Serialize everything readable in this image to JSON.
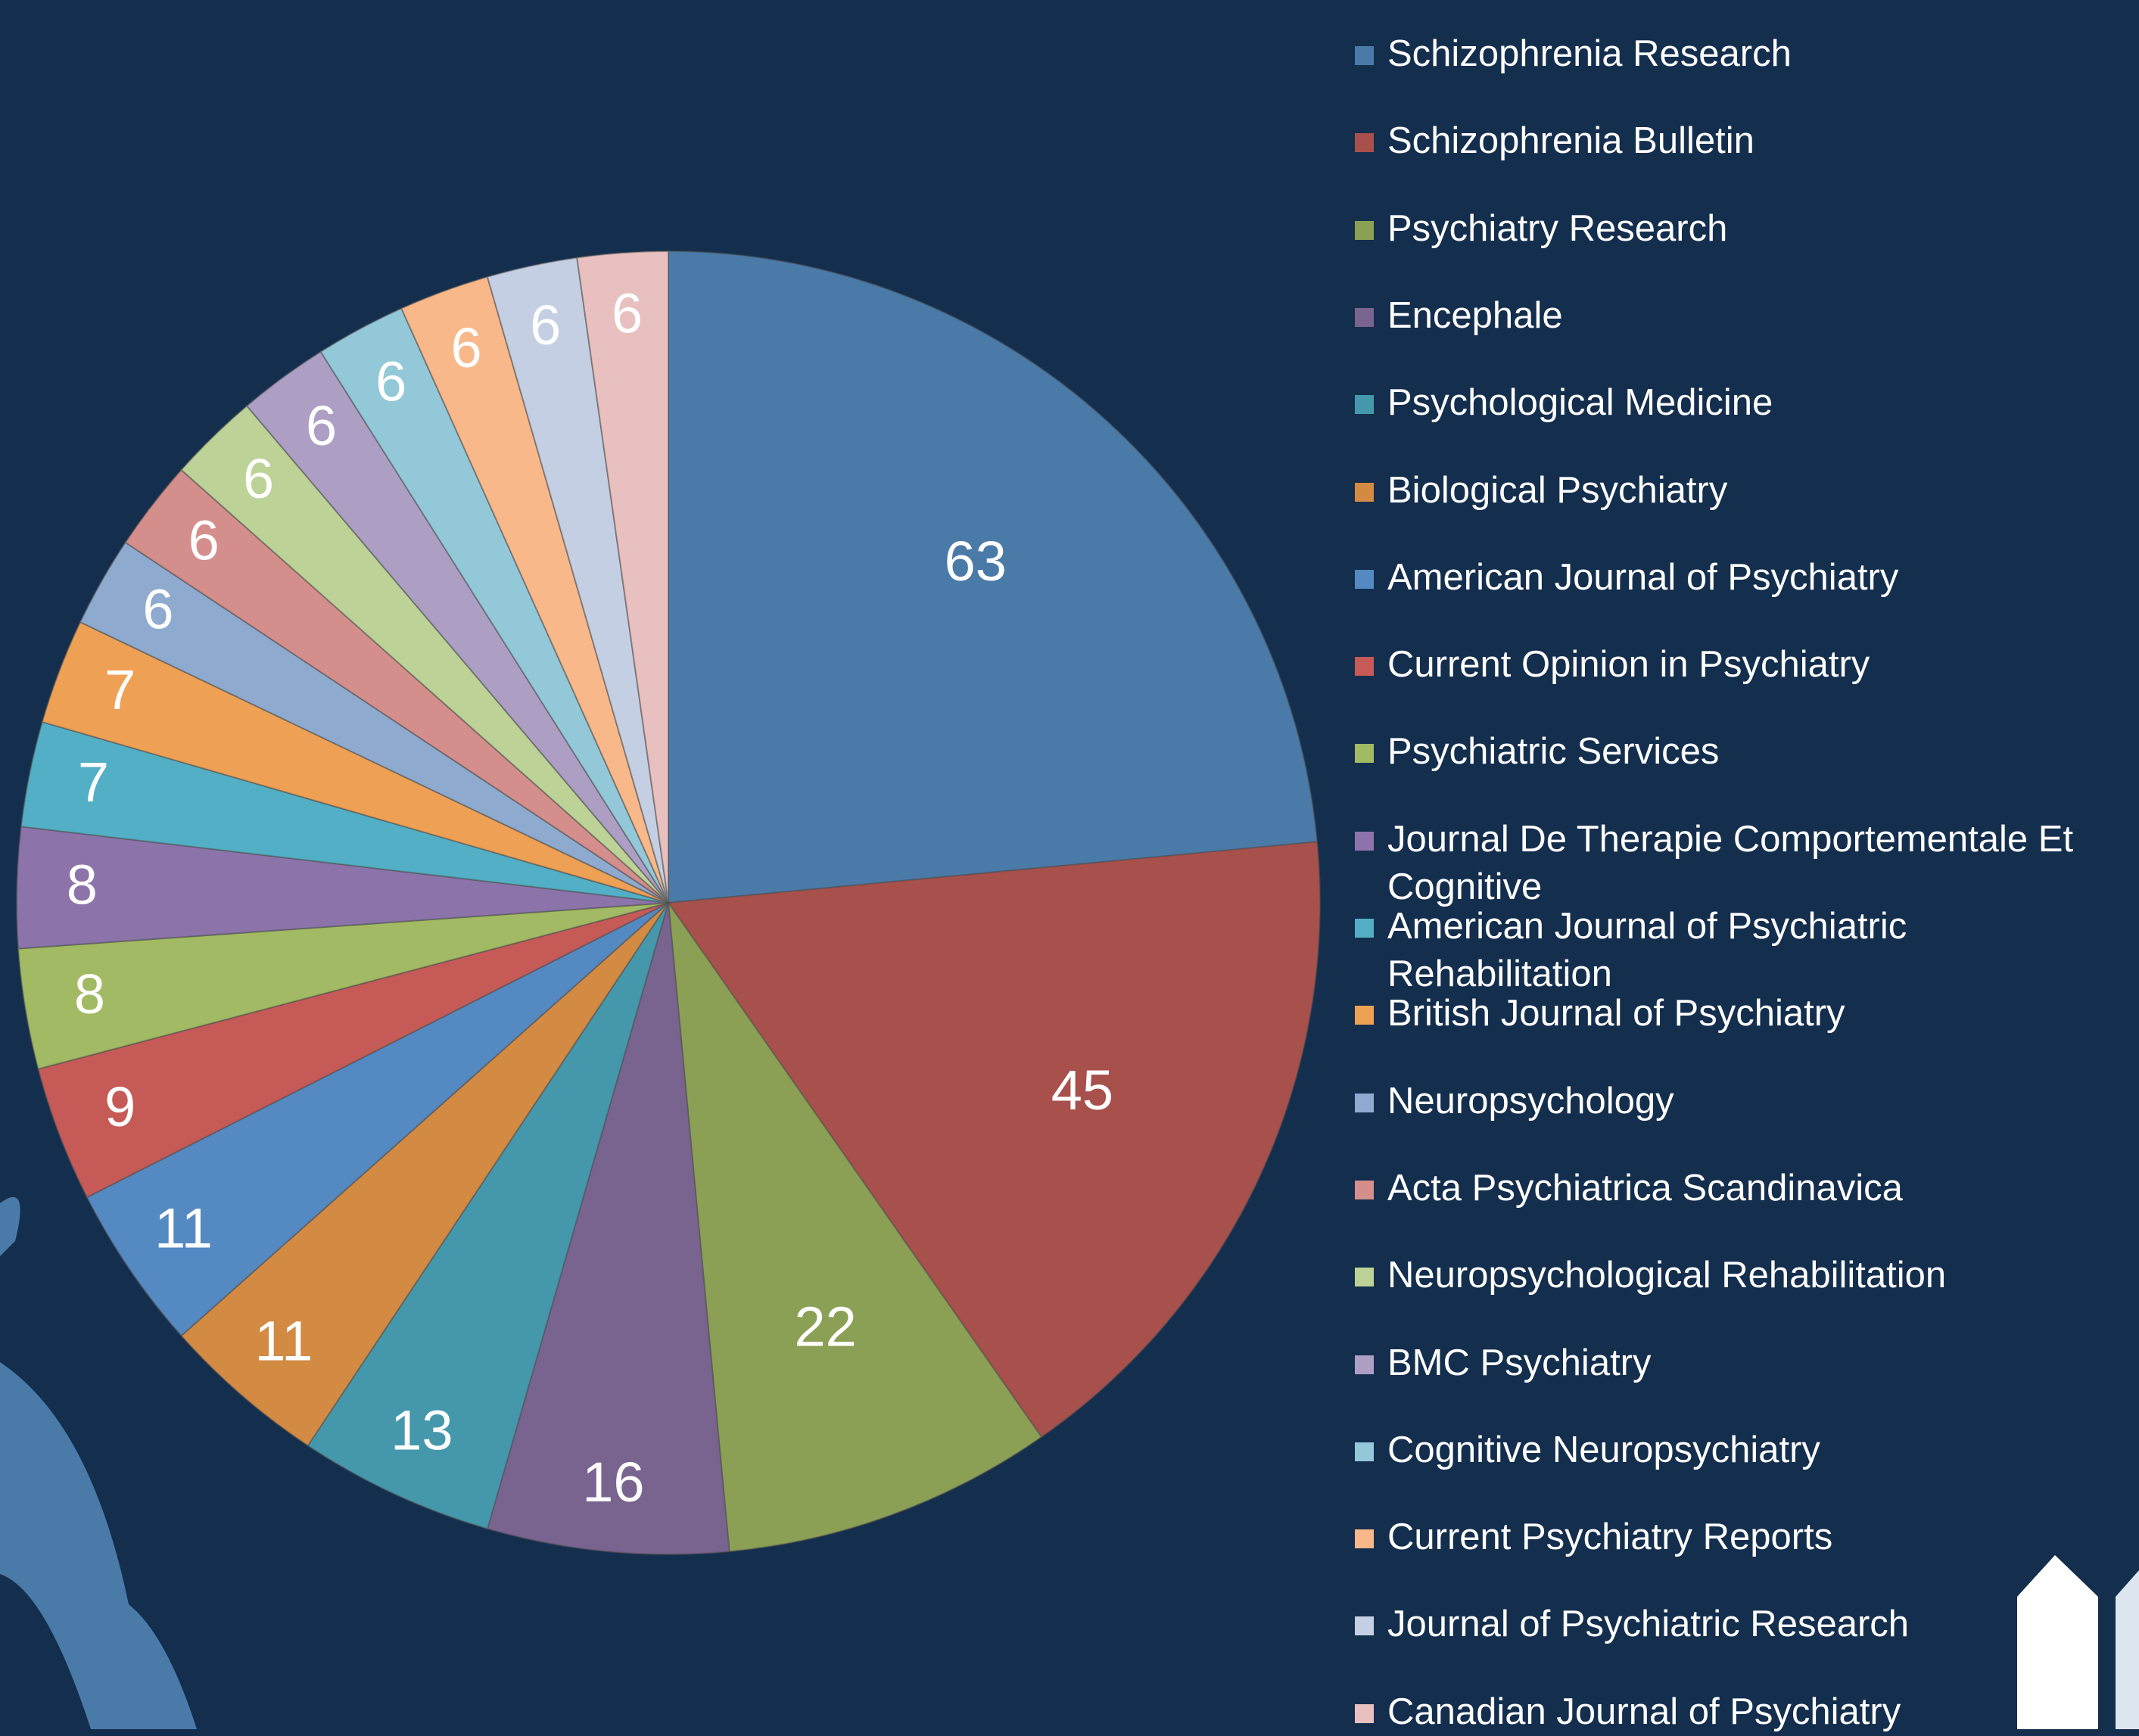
{
  "chart_data": {
    "type": "pie",
    "categories": [
      "Schizophrenia Research",
      "Schizophrenia Bulletin",
      "Psychiatry Research",
      "Encephale",
      "Psychological Medicine",
      "Biological Psychiatry",
      "American Journal of Psychiatry",
      "Current Opinion in Psychiatry",
      "Psychiatric Services",
      "Journal De Therapie Comportementale Et Cognitive",
      "American Journal of Psychiatric Rehabilitation",
      "British Journal of Psychiatry",
      "Neuropsychology",
      "Acta Psychiatrica Scandinavica",
      "Neuropsychological Rehabilitation",
      "BMC Psychiatry",
      "Cognitive Neuropsychiatry",
      "Current Psychiatry Reports",
      "Journal of Psychiatric Research",
      "Canadian Journal of Psychiatry"
    ],
    "values": [
      63,
      45,
      22,
      16,
      13,
      11,
      11,
      9,
      8,
      8,
      7,
      7,
      6,
      6,
      6,
      6,
      6,
      6,
      6,
      6
    ],
    "colors": [
      "#4a7aa8",
      "#a8504c",
      "#8ba054",
      "#79638f",
      "#4598ab",
      "#d38a43",
      "#5589c2",
      "#c55a57",
      "#a1ba63",
      "#8c74ab",
      "#52afc6",
      "#eea054",
      "#8faacf",
      "#d48e8c",
      "#bdd296",
      "#ad9fc4",
      "#93c8d9",
      "#f9b88a",
      "#c5cfe3",
      "#e8c0bf"
    ],
    "legend": "right"
  }
}
